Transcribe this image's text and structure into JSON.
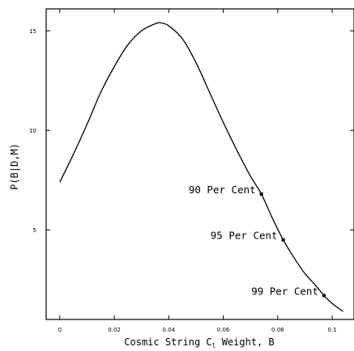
{
  "chart_data": {
    "type": "line",
    "xlabel_parts": [
      "Cosmic String C",
      "l",
      " Weight, B"
    ],
    "ylabel": "P(B|D,M)",
    "xlim": [
      -0.005,
      0.108
    ],
    "ylim": [
      0.5,
      16.1
    ],
    "x_ticks": [
      0,
      0.02,
      0.04,
      0.06,
      0.08,
      0.1
    ],
    "x_tick_labels": [
      "0",
      "0.02",
      "0.04",
      "0.06",
      "0.08",
      "0.1"
    ],
    "y_ticks": [
      5,
      10,
      15
    ],
    "y_tick_labels": [
      "5",
      "10",
      "15"
    ],
    "grid": false,
    "legend": "none",
    "series": [
      {
        "x": [
          0.0,
          0.005,
          0.01,
          0.015,
          0.02,
          0.025,
          0.03,
          0.035,
          0.037,
          0.04,
          0.045,
          0.05,
          0.055,
          0.06,
          0.065,
          0.07,
          0.074,
          0.078,
          0.082,
          0.086,
          0.09,
          0.094,
          0.097,
          0.1,
          0.104
        ],
        "y": [
          7.4,
          8.8,
          10.3,
          11.9,
          13.2,
          14.3,
          15.0,
          15.35,
          15.4,
          15.25,
          14.6,
          13.4,
          11.9,
          10.4,
          9.0,
          7.7,
          6.8,
          5.6,
          4.5,
          3.6,
          2.8,
          2.2,
          1.7,
          1.3,
          0.9
        ]
      }
    ],
    "annotations": [
      {
        "text": "90 Per Cent",
        "x": 0.074,
        "y": 6.8
      },
      {
        "text": "95 Per Cent",
        "x": 0.082,
        "y": 4.5
      },
      {
        "text": "99 Per Cent",
        "x": 0.097,
        "y": 1.7
      }
    ]
  }
}
